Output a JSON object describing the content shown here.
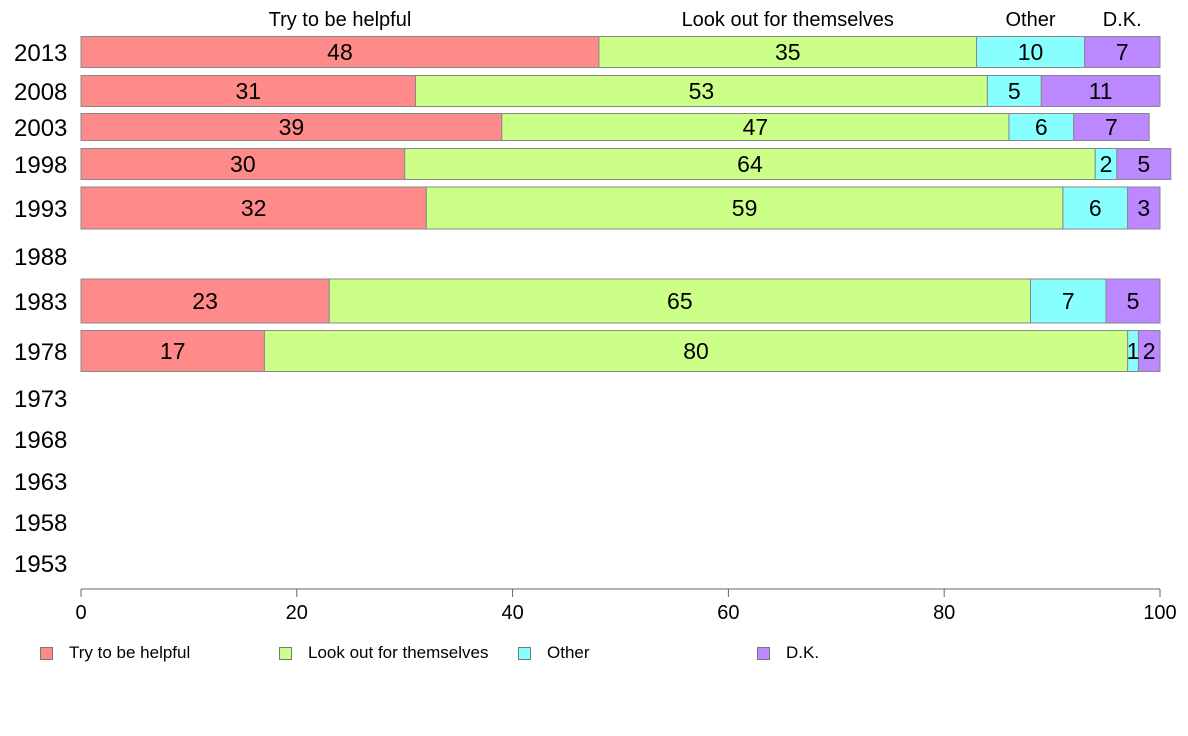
{
  "chart_data": {
    "type": "bar",
    "orientation": "horizontal",
    "stacked": true,
    "categories": [
      "2013",
      "2008",
      "2003",
      "1998",
      "1993",
      "1988",
      "1983",
      "1978",
      "1973",
      "1968",
      "1963",
      "1958",
      "1953"
    ],
    "series": [
      {
        "name": "Try to be helpful",
        "color": "#ff8a8a",
        "values": [
          48,
          31,
          39,
          30,
          32,
          null,
          23,
          17,
          null,
          null,
          null,
          null,
          null
        ]
      },
      {
        "name": "Look out for themselves",
        "color": "#ccff88",
        "values": [
          35,
          53,
          47,
          64,
          59,
          null,
          65,
          80,
          null,
          null,
          null,
          null,
          null
        ]
      },
      {
        "name": "Other",
        "color": "#88ffff",
        "values": [
          10,
          5,
          6,
          2,
          6,
          null,
          7,
          1,
          null,
          null,
          null,
          null,
          null
        ]
      },
      {
        "name": "D.K.",
        "color": "#bb88ff",
        "values": [
          7,
          11,
          7,
          5,
          3,
          null,
          5,
          2,
          null,
          null,
          null,
          null,
          null
        ]
      }
    ],
    "xlim": [
      0,
      100
    ],
    "xticks": [
      "0",
      "20",
      "40",
      "60",
      "80",
      "100"
    ],
    "legend_position": "bottom",
    "column_headers": true
  },
  "legend": {
    "items": [
      "Try to be helpful",
      "Look out for themselves",
      "Other",
      "D.K."
    ]
  }
}
